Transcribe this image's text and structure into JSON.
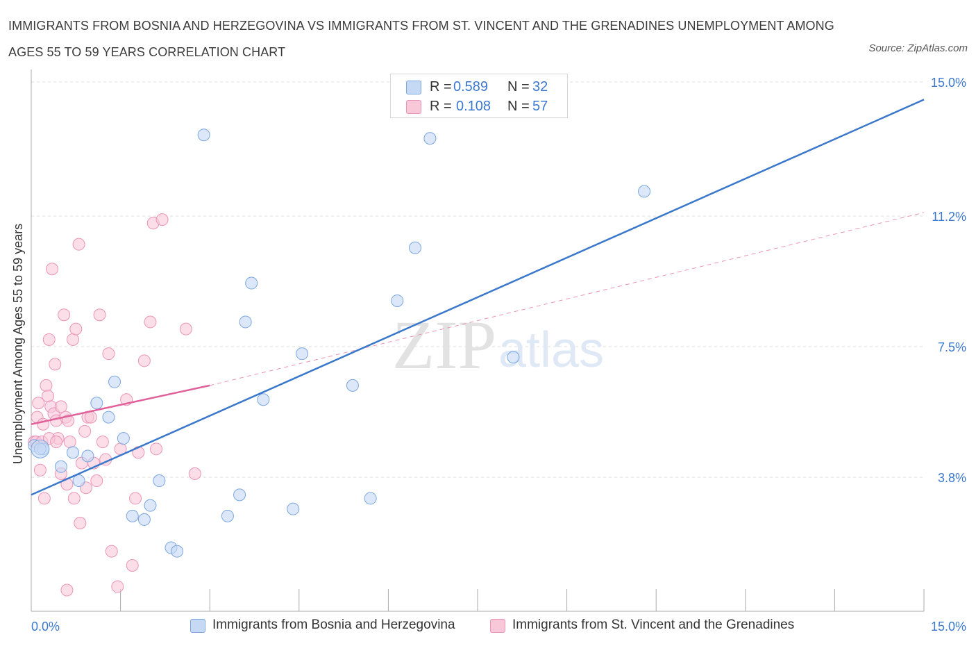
{
  "title": "IMMIGRANTS FROM BOSNIA AND HERZEGOVINA VS IMMIGRANTS FROM ST. VINCENT AND THE GRENADINES UNEMPLOYMENT AMONG AGES 55 TO 59 YEARS CORRELATION CHART",
  "source": "Source: ZipAtlas.com",
  "watermark": {
    "zip": "ZIP",
    "atlas": "atlas"
  },
  "colors": {
    "blue": "#3a78cc",
    "blue_fill": "#c5d9f5",
    "blue_stroke": "#7aa6e0",
    "pink": "#e0609a",
    "pink_fill": "#f8c8d8",
    "pink_stroke": "#ec94b5",
    "axis_text": "#3b78d0",
    "grid": "#dcdcdc"
  },
  "legend": {
    "rows": [
      {
        "r_label": "R =",
        "r_value": "0.589",
        "n_label": "N =",
        "n_value": "32"
      },
      {
        "r_label": "R =",
        "r_value": "0.108",
        "n_label": "N =",
        "n_value": "57"
      }
    ]
  },
  "bottom_legend": {
    "series1": "Immigrants from Bosnia and Herzegovina",
    "series2": "Immigrants from St. Vincent and the Grenadines"
  },
  "chart_data": {
    "type": "scatter",
    "title": "IMMIGRANTS FROM BOSNIA AND HERZEGOVINA VS IMMIGRANTS FROM ST. VINCENT AND THE GRENADINES UNEMPLOYMENT AMONG AGES 55 TO 59 YEARS CORRELATION CHART",
    "xlabel": "",
    "ylabel": "Unemployment Among Ages 55 to 59 years",
    "xlim": [
      0,
      15
    ],
    "ylim": [
      0,
      15
    ],
    "x_tick_labels": [
      "0.0%",
      "15.0%"
    ],
    "y_tick_labels": [
      "3.8%",
      "7.5%",
      "11.2%",
      "15.0%"
    ],
    "y_ticks": [
      3.8,
      7.5,
      11.2,
      15.0
    ],
    "grid": true,
    "legend_position": "top-center",
    "series": [
      {
        "name": "Immigrants from Bosnia and Herzegovina",
        "R": 0.589,
        "N": 32,
        "points": [
          [
            0.05,
            4.7
          ],
          [
            0.2,
            4.6
          ],
          [
            0.5,
            4.1
          ],
          [
            0.7,
            4.5
          ],
          [
            0.8,
            3.7
          ],
          [
            0.95,
            4.4
          ],
          [
            1.1,
            5.9
          ],
          [
            1.3,
            5.5
          ],
          [
            1.4,
            6.5
          ],
          [
            1.55,
            4.9
          ],
          [
            1.7,
            2.7
          ],
          [
            1.9,
            2.6
          ],
          [
            2.0,
            3.0
          ],
          [
            2.15,
            3.7
          ],
          [
            2.35,
            1.8
          ],
          [
            2.45,
            1.7
          ],
          [
            2.9,
            13.5
          ],
          [
            3.3,
            2.7
          ],
          [
            3.5,
            3.3
          ],
          [
            3.7,
            9.3
          ],
          [
            3.6,
            8.2
          ],
          [
            3.9,
            6.0
          ],
          [
            4.4,
            2.9
          ],
          [
            4.55,
            7.3
          ],
          [
            5.4,
            6.4
          ],
          [
            5.7,
            3.2
          ],
          [
            6.15,
            8.8
          ],
          [
            6.45,
            10.3
          ],
          [
            6.7,
            13.4
          ],
          [
            8.1,
            7.2
          ],
          [
            10.3,
            11.9
          ],
          [
            0.15,
            4.6
          ]
        ],
        "trend": {
          "x1": 0,
          "y1": 3.3,
          "x2": 15,
          "y2": 14.5,
          "style": "solid"
        }
      },
      {
        "name": "Immigrants from St. Vincent and the Grenadines",
        "R": 0.108,
        "N": 57,
        "points": [
          [
            0.05,
            4.8
          ],
          [
            0.1,
            5.5
          ],
          [
            0.12,
            5.9
          ],
          [
            0.15,
            4.0
          ],
          [
            0.2,
            5.3
          ],
          [
            0.22,
            3.2
          ],
          [
            0.25,
            6.4
          ],
          [
            0.28,
            6.1
          ],
          [
            0.3,
            7.7
          ],
          [
            0.33,
            5.8
          ],
          [
            0.35,
            9.7
          ],
          [
            0.38,
            5.6
          ],
          [
            0.4,
            7.0
          ],
          [
            0.42,
            5.4
          ],
          [
            0.45,
            4.9
          ],
          [
            0.5,
            5.8
          ],
          [
            0.5,
            3.9
          ],
          [
            0.55,
            8.4
          ],
          [
            0.58,
            5.5
          ],
          [
            0.6,
            3.6
          ],
          [
            0.62,
            5.4
          ],
          [
            0.65,
            4.8
          ],
          [
            0.7,
            7.7
          ],
          [
            0.72,
            3.2
          ],
          [
            0.75,
            8.0
          ],
          [
            0.8,
            10.4
          ],
          [
            0.82,
            2.5
          ],
          [
            0.85,
            4.2
          ],
          [
            0.9,
            5.1
          ],
          [
            0.92,
            3.5
          ],
          [
            0.95,
            5.5
          ],
          [
            1.0,
            5.5
          ],
          [
            1.05,
            4.2
          ],
          [
            1.1,
            3.7
          ],
          [
            1.15,
            8.4
          ],
          [
            1.2,
            4.8
          ],
          [
            1.25,
            4.3
          ],
          [
            1.3,
            7.3
          ],
          [
            1.35,
            1.7
          ],
          [
            1.5,
            4.6
          ],
          [
            1.6,
            6.0
          ],
          [
            1.7,
            1.3
          ],
          [
            1.75,
            3.2
          ],
          [
            1.8,
            4.5
          ],
          [
            1.9,
            7.1
          ],
          [
            2.0,
            8.2
          ],
          [
            2.05,
            11.0
          ],
          [
            2.1,
            4.6
          ],
          [
            2.2,
            11.1
          ],
          [
            2.6,
            8.0
          ],
          [
            2.75,
            3.9
          ],
          [
            1.45,
            0.7
          ],
          [
            0.6,
            0.6
          ],
          [
            0.08,
            4.8
          ],
          [
            0.18,
            4.8
          ],
          [
            0.3,
            4.9
          ],
          [
            0.42,
            4.8
          ]
        ],
        "trend": {
          "x1": 0,
          "y1": 5.3,
          "x2": 3.0,
          "y2": 6.4,
          "style": "solid"
        },
        "trend_extension": {
          "x1": 3.0,
          "y1": 6.4,
          "x2": 15,
          "y2": 11.3,
          "style": "dashed"
        }
      }
    ]
  }
}
